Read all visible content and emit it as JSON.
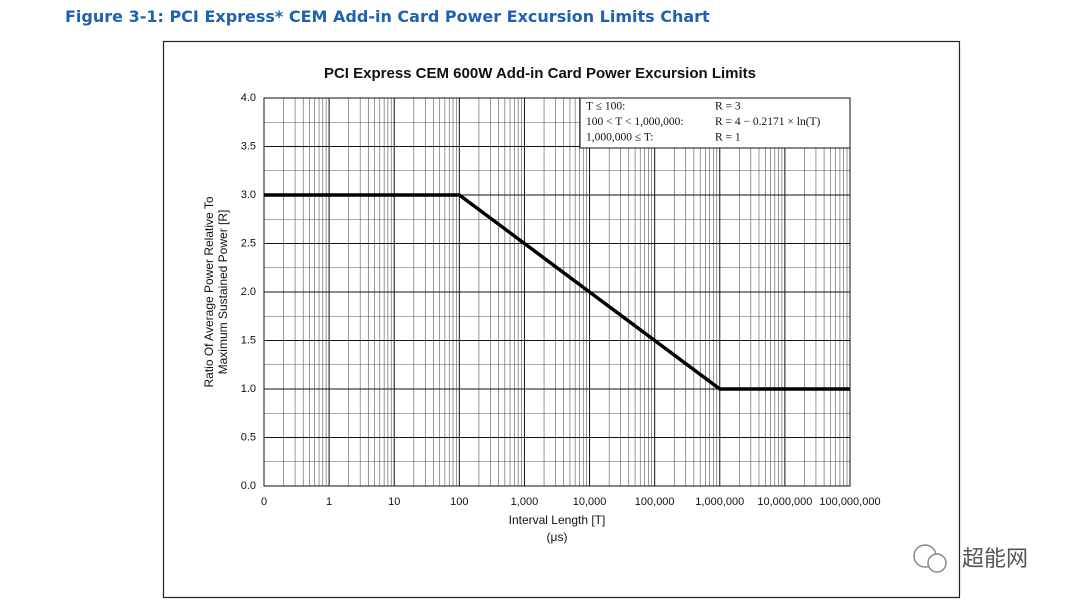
{
  "figure_caption": "Figure 3-1: PCI Express* CEM Add-in Card Power Excursion Limits Chart",
  "chart_data": {
    "type": "line",
    "title": "PCI Express CEM 600W Add-in Card Power Excursion Limits",
    "xlabel": [
      "Interval Length  [T]",
      "(μs)"
    ],
    "ylabel": [
      "Ratio Of Average Power Relative To",
      "Maximum Sustained Power  [R]"
    ],
    "categories": [
      "0",
      "1",
      "10",
      "100",
      "1,000",
      "10,000",
      "100,000",
      "1,000,000",
      "10,000,000",
      "100,000,000"
    ],
    "values": [
      3,
      3,
      3,
      3,
      2.5,
      2,
      1.5,
      1,
      1,
      1
    ],
    "color": "#000000",
    "ylim": [
      0,
      4
    ],
    "yticks": [
      {
        "value": 0,
        "label": "0.0"
      },
      0.5,
      {
        "value": 1,
        "label": "1.0"
      },
      1.5,
      {
        "value": 2,
        "label": "2.0"
      },
      2.5,
      {
        "value": 3,
        "label": "3.0"
      },
      3.5,
      {
        "value": 4,
        "label": "4.0"
      }
    ],
    "grid": true,
    "annotation": [
      [
        "T ≤ 100:",
        "R = 3"
      ],
      [
        "100 < T < 1,000,000:",
        "R = 4 − 0.2171 × ln(T)"
      ],
      [
        "1,000,000 ≤ T:",
        "R = 1"
      ]
    ]
  },
  "watermark": "超能网"
}
